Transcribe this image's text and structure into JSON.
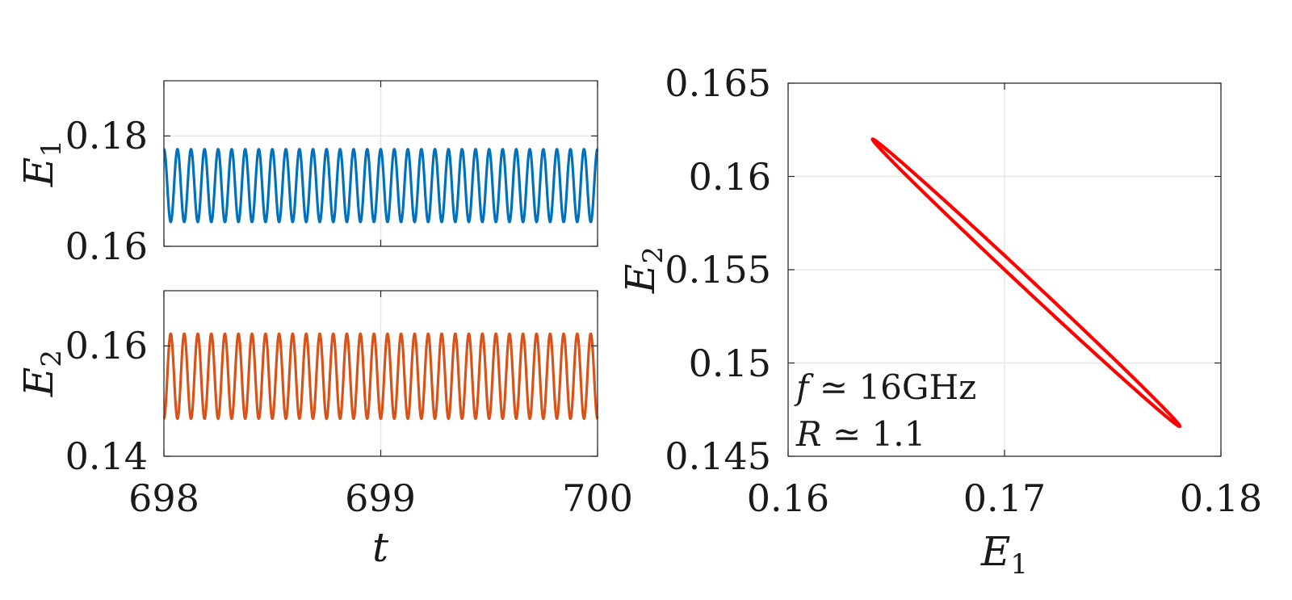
{
  "chart_data": [
    {
      "type": "line",
      "panel": "top-left",
      "xlabel": "",
      "ylabel_main": "E",
      "ylabel_sub": "1",
      "xlim": [
        698,
        700
      ],
      "ylim": [
        0.16,
        0.19
      ],
      "xticks": [
        698,
        699,
        700
      ],
      "yticks": [
        0.16,
        0.18
      ],
      "ytick_labels": [
        "0.16",
        "0.18"
      ],
      "grid": true,
      "series": [
        {
          "color": "#0072BD",
          "mean": 0.171,
          "amplitude": 0.0066,
          "cycles": 32,
          "phase": 1.5708
        }
      ]
    },
    {
      "type": "line",
      "panel": "bottom-left",
      "xlabel": "t",
      "ylabel_main": "E",
      "ylabel_sub": "2",
      "xlim": [
        698,
        700
      ],
      "ylim": [
        0.14,
        0.17
      ],
      "xticks": [
        698,
        699,
        700
      ],
      "xtick_labels": [
        "698",
        "699",
        "700"
      ],
      "yticks": [
        0.14,
        0.16
      ],
      "ytick_labels": [
        "0.14",
        "0.16"
      ],
      "grid": true,
      "series": [
        {
          "color": "#D95319",
          "mean": 0.1545,
          "amplitude": 0.0077,
          "cycles": 32,
          "phase": -1.5708
        }
      ]
    },
    {
      "type": "line",
      "panel": "right",
      "xlabel_main": "E",
      "xlabel_sub": "1",
      "ylabel_main": "E",
      "ylabel_sub": "2",
      "xlim": [
        0.16,
        0.18
      ],
      "ylim": [
        0.145,
        0.165
      ],
      "xticks": [
        0.16,
        0.17,
        0.18
      ],
      "xtick_labels": [
        "0.16",
        "0.17",
        "0.18"
      ],
      "yticks": [
        0.145,
        0.15,
        0.155,
        0.16,
        0.165
      ],
      "ytick_labels": [
        "0.145",
        "0.15",
        "0.155",
        "0.16",
        "0.165"
      ],
      "grid": true,
      "series": [
        {
          "color": "#FF0000",
          "shape": "closed-orbit",
          "x_center": 0.171,
          "x_amplitude": 0.0071,
          "y_center": 0.1543,
          "y_amplitude": 0.0077,
          "phase_lag": 0.05
        }
      ],
      "annotations": [
        {
          "var": "f",
          "rel": " ≃ ",
          "value": "16GHz"
        },
        {
          "var": "R",
          "rel": " ≃ ",
          "value": "1.1"
        }
      ]
    }
  ]
}
